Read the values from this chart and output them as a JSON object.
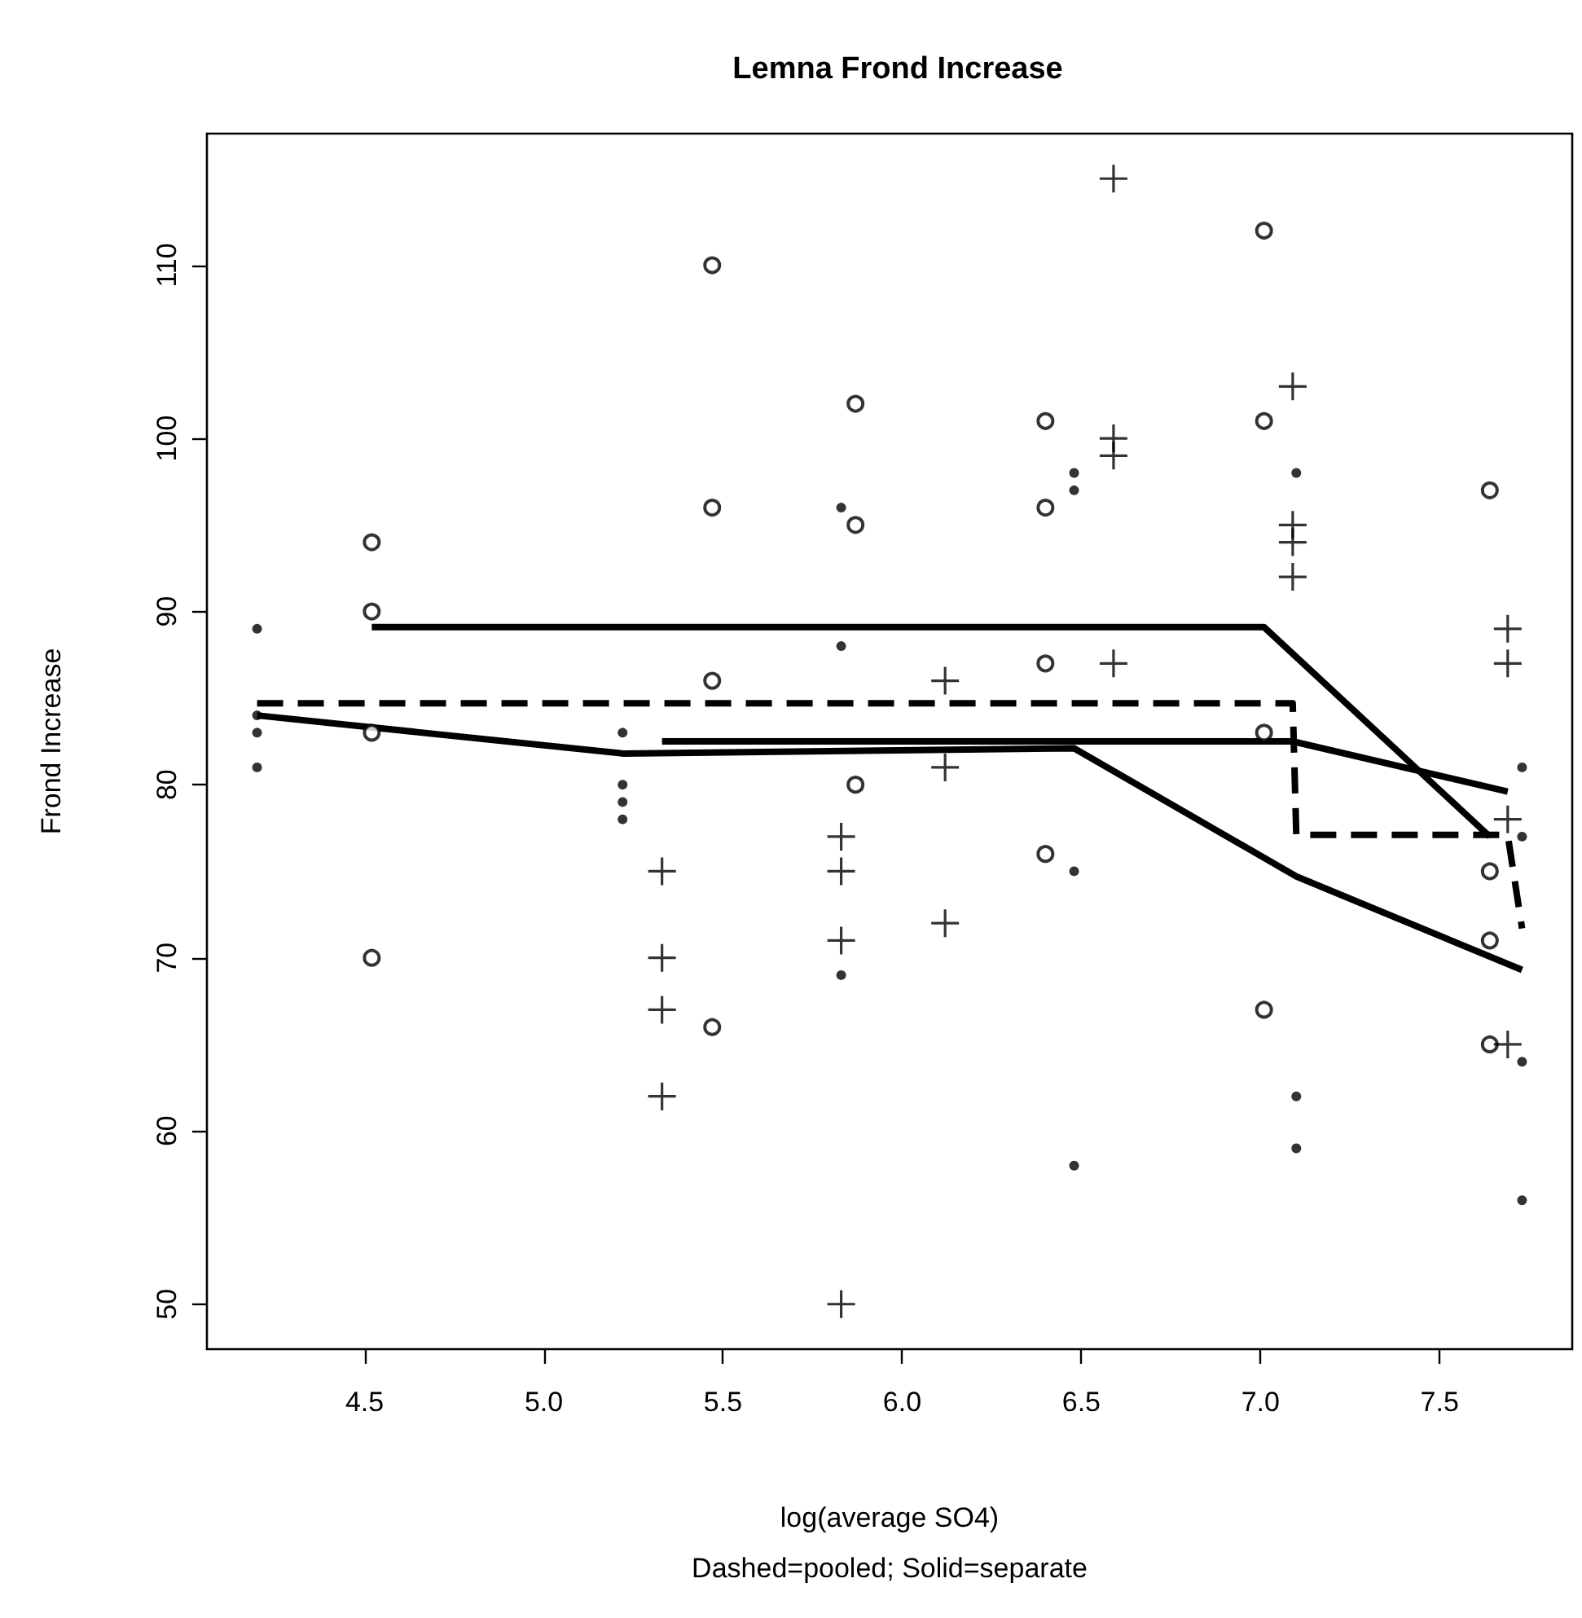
{
  "chart_data": {
    "type": "scatter",
    "title": "Lemna Frond Increase",
    "xlabel": "log(average SO4)\nDashed=pooled; Solid=separate",
    "ylabel": "Frond Increase",
    "xlim": [
      4.06,
      7.87
    ],
    "xticks": [
      {
        "value": 4.5,
        "label": "4.5"
      },
      {
        "value": 5,
        "label": "5.0"
      },
      {
        "value": 5.5,
        "label": "5.5"
      },
      {
        "value": 6,
        "label": "6.0"
      },
      {
        "value": 6.5,
        "label": "6.5"
      },
      {
        "value": 7,
        "label": "7.0"
      },
      {
        "value": 7.5,
        "label": "7.5"
      }
    ],
    "ylim": [
      47.4,
      117.6
    ],
    "yticks": [
      50,
      60,
      70,
      80,
      90,
      100,
      110
    ],
    "grid": false,
    "series": [
      {
        "marker": "dot",
        "color": "#000000",
        "x": [
          4.2,
          4.2,
          4.2,
          4.2,
          5.22,
          5.22,
          5.22,
          5.22,
          5.83,
          5.83,
          5.83,
          6.48,
          6.48,
          6.48,
          6.48,
          7.1,
          7.1,
          7.1,
          7.73,
          7.73,
          7.73,
          7.73
        ],
        "values": [
          89,
          84,
          83,
          81,
          83,
          80,
          79,
          78,
          96,
          88,
          69,
          98,
          97,
          75,
          58,
          98,
          62,
          59,
          81,
          77,
          64,
          56
        ]
      },
      {
        "marker": "circle",
        "color": "#000000",
        "x": [
          4.52,
          4.52,
          4.52,
          4.52,
          5.47,
          5.47,
          5.47,
          5.47,
          5.87,
          5.87,
          5.87,
          6.4,
          6.4,
          6.4,
          6.4,
          7.01,
          7.01,
          7.01,
          7.01,
          7.64,
          7.64,
          7.64,
          7.64
        ],
        "values": [
          94,
          90,
          83,
          70,
          110,
          96,
          86,
          66,
          102,
          95,
          80,
          101,
          96,
          87,
          76,
          112,
          101,
          83,
          67,
          97,
          75,
          71,
          65
        ]
      },
      {
        "marker": "cross",
        "color": "#000000",
        "x": [
          5.33,
          5.33,
          5.33,
          5.33,
          5.83,
          5.83,
          5.83,
          5.83,
          6.12,
          6.12,
          6.12,
          6.59,
          6.59,
          6.59,
          6.59,
          7.09,
          7.09,
          7.09,
          7.09,
          7.69,
          7.69,
          7.69,
          7.69
        ],
        "values": [
          75,
          70,
          67,
          62,
          77,
          75,
          71,
          50,
          86,
          81,
          72,
          115,
          100,
          99,
          87,
          103,
          95,
          94,
          92,
          89,
          87,
          78,
          65
        ]
      },
      {
        "type": "line",
        "marker": "none",
        "line_style": "solid",
        "color": "#000000",
        "x": [
          4.52,
          7.01,
          7.64
        ],
        "values": [
          89.1,
          89.1,
          77
        ]
      },
      {
        "type": "line",
        "marker": "none",
        "line_style": "solid",
        "color": "#000000",
        "x": [
          4.2,
          5.22,
          6.48,
          7.1,
          7.73
        ],
        "values": [
          84,
          81.8,
          82.1,
          74.7,
          69.3
        ]
      },
      {
        "type": "line",
        "marker": "none",
        "line_style": "solid",
        "color": "#000000",
        "x": [
          5.33,
          7.09,
          7.69
        ],
        "values": [
          82.5,
          82.5,
          79.6
        ]
      },
      {
        "type": "line",
        "marker": "none",
        "line_style": "dashed",
        "color": "#000000",
        "x": [
          4.2,
          7.09,
          7.1,
          7.69,
          7.73
        ],
        "values": [
          84.7,
          84.7,
          77.1,
          77.1,
          71.7
        ]
      }
    ]
  }
}
